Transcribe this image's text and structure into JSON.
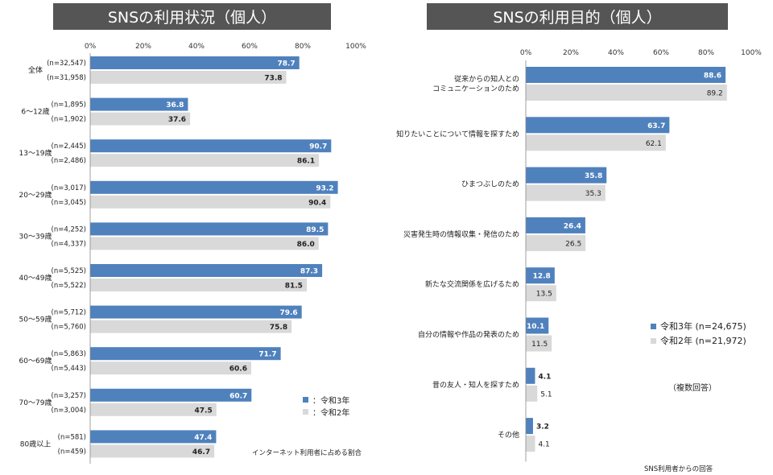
{
  "chart_data": [
    {
      "type": "bar",
      "title": "SNSの利用状況（個人）",
      "orientation": "horizontal",
      "xlim": [
        0,
        100
      ],
      "ticks": [
        "0%",
        "20%",
        "40%",
        "60%",
        "80%",
        "100%"
      ],
      "categories": [
        "全体",
        "6～12歳",
        "13～19歳",
        "20～29歳",
        "30～39歳",
        "40～49歳",
        "50～59歳",
        "60～69歳",
        "70～79歳",
        "80歳以上"
      ],
      "series": [
        {
          "name": "：令和3年",
          "color": "#4f81bd",
          "values": [
            78.7,
            36.8,
            90.7,
            93.2,
            89.5,
            87.3,
            79.6,
            71.7,
            60.7,
            47.4
          ],
          "n": [
            "(n=32,547)",
            "(n=1,895)",
            "(n=2,445)",
            "(n=3,017)",
            "(n=4,252)",
            "(n=5,525)",
            "(n=5,712)",
            "(n=5,863)",
            "(n=3,257)",
            "(n=581)"
          ]
        },
        {
          "name": "：令和2年",
          "color": "#d9d9d9",
          "values": [
            73.8,
            37.6,
            86.1,
            90.4,
            86.0,
            81.5,
            75.8,
            60.6,
            47.5,
            46.7
          ],
          "n": [
            "(n=31,958)",
            "(n=1,902)",
            "(n=2,486)",
            "(n=3,045)",
            "(n=4,337)",
            "(n=5,522)",
            "(n=5,760)",
            "(n=5,443)",
            "(n=3,004)",
            "(n=459)"
          ]
        }
      ],
      "legend_position": "bottom-right",
      "note": "インターネット利用者に占める割合"
    },
    {
      "type": "bar",
      "title": "SNSの利用目的（個人）",
      "orientation": "horizontal",
      "xlim": [
        0,
        100
      ],
      "ticks": [
        "0%",
        "20%",
        "40%",
        "60%",
        "80%",
        "100%"
      ],
      "categories": [
        "従来からの知人との\nコミュニケーションのため",
        "知りたいことについて情報を探すため",
        "ひまつぶしのため",
        "災害発生時の情報収集・発信のため",
        "新たな交流関係を広げるため",
        "自分の情報や作品の発表のため",
        "昔の友人・知人を探すため",
        "その他"
      ],
      "series": [
        {
          "name": "令和3年 (n=24,675)",
          "color": "#4f81bd",
          "values": [
            88.6,
            63.7,
            35.8,
            26.4,
            12.8,
            10.1,
            4.1,
            3.2
          ]
        },
        {
          "name": "令和2年 (n=21,972)",
          "color": "#d9d9d9",
          "values": [
            89.2,
            62.1,
            35.3,
            26.5,
            13.5,
            11.5,
            5.1,
            4.1
          ]
        }
      ],
      "legend_position": "right",
      "note1": "（複数回答）",
      "note2": "SNS利用者からの回答"
    }
  ]
}
